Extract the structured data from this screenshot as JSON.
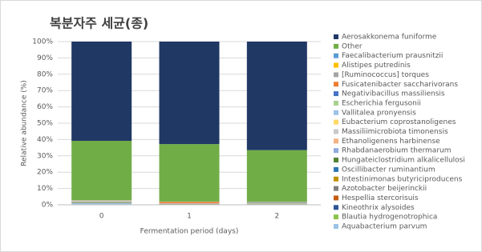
{
  "chart_data": {
    "type": "stacked_bar",
    "title": "복분자주 세균(종)",
    "x_label": "Fermentation period (days)",
    "y_label": "Relative abundance (%)",
    "categories": [
      "0",
      "1",
      "2"
    ],
    "ylim": [
      0,
      100
    ],
    "yticks": [
      {
        "value": 0,
        "label": "0%"
      },
      {
        "value": 10,
        "label": "10%"
      },
      {
        "value": 20,
        "label": "20%"
      },
      {
        "value": 30,
        "label": "30%"
      },
      {
        "value": 40,
        "label": "40%"
      },
      {
        "value": 50,
        "label": "50%"
      },
      {
        "value": 60,
        "label": "60%"
      },
      {
        "value": 70,
        "label": "70%"
      },
      {
        "value": 80,
        "label": "80%"
      },
      {
        "value": 90,
        "label": "90%"
      },
      {
        "value": 100,
        "label": "100%"
      }
    ],
    "grid": true,
    "legend": "right",
    "series": [
      {
        "name": "Aerosakkonema funiforme",
        "color": "#203864",
        "values": [
          60.8,
          62.8,
          66.5
        ]
      },
      {
        "name": "Other",
        "color": "#70ad47",
        "values": [
          36.3,
          35.2,
          31.5
        ]
      },
      {
        "name": "Faecalibacterium prausnitzii",
        "color": "#5b9bd5",
        "values": [
          0.1,
          0.1,
          0.3
        ]
      },
      {
        "name": "Alistipes putredinis",
        "color": "#ffc000",
        "values": [
          0.1,
          0.1,
          0.2
        ]
      },
      {
        "name": "[Ruminococcus] torques",
        "color": "#a5a5a5",
        "values": [
          0.1,
          0.1,
          0.1
        ]
      },
      {
        "name": "Fusicatenibacter saccharivorans",
        "color": "#ed7d31",
        "values": [
          0.1,
          0.8,
          0.1
        ]
      },
      {
        "name": "Negativibacillus massiliensis",
        "color": "#4472c4",
        "values": [
          0.1,
          0.1,
          0.2
        ]
      },
      {
        "name": "Escherichia fergusonii",
        "color": "#a9d18e",
        "values": [
          0.1,
          0.05,
          0.1
        ]
      },
      {
        "name": "Vallitalea pronyensis",
        "color": "#9dc3e6",
        "values": [
          0.1,
          0.05,
          0.05
        ]
      },
      {
        "name": "Eubacterium coprostanoligenes",
        "color": "#ffd966",
        "values": [
          0.1,
          0.05,
          0.05
        ]
      },
      {
        "name": "Massiliimicrobiota timonensis",
        "color": "#c9c9c9",
        "values": [
          0.1,
          0.05,
          0.05
        ]
      },
      {
        "name": "Ethanoligenens harbinense",
        "color": "#f4b183",
        "values": [
          0.1,
          0.05,
          0.05
        ]
      },
      {
        "name": "Rhabdanaerobium thermarum",
        "color": "#8faadc",
        "values": [
          0.1,
          0.05,
          0.05
        ]
      },
      {
        "name": "Hungateiclostridium alkalicellulosi",
        "color": "#548235",
        "values": [
          0.1,
          0.05,
          0.05
        ]
      },
      {
        "name": "Oscillibacter ruminantium",
        "color": "#2e75b6",
        "values": [
          0.1,
          0.05,
          0.05
        ]
      },
      {
        "name": "Intestinimonas butyriciproducens",
        "color": "#bf9000",
        "values": [
          0.1,
          0.05,
          0.05
        ]
      },
      {
        "name": "Azotobacter beijerinckii",
        "color": "#7f7f7f",
        "values": [
          0.1,
          0.05,
          0.05
        ]
      },
      {
        "name": "Hespellia stercorisuis",
        "color": "#c55a11",
        "values": [
          0.1,
          0.05,
          0.05
        ]
      },
      {
        "name": "Kineothrix alysoides",
        "color": "#2f5597",
        "values": [
          0.1,
          0.05,
          0.05
        ]
      },
      {
        "name": "Blautia hydrogenotrophica",
        "color": "#8bc34a",
        "values": [
          0.2,
          0.05,
          0.15
        ]
      },
      {
        "name": "Aquabacterium parvum",
        "color": "#9cc3e5",
        "values": [
          1.0,
          0.15,
          0.3
        ]
      }
    ]
  }
}
